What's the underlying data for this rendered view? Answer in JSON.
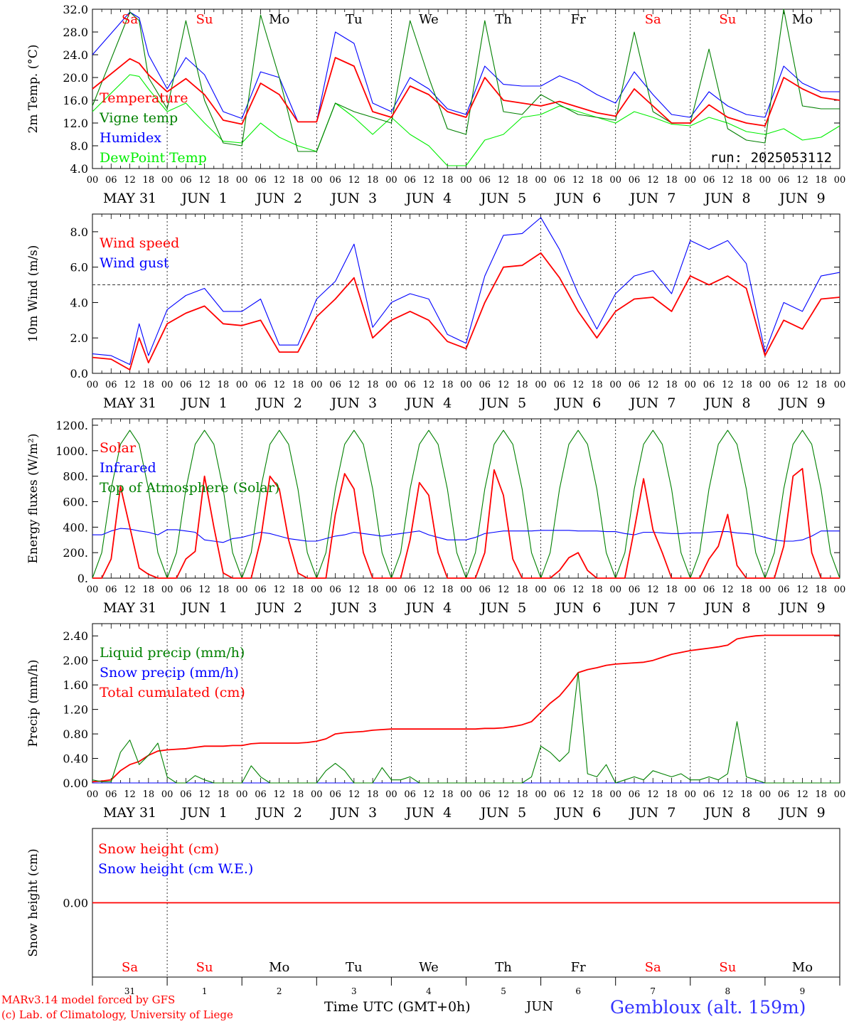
{
  "meteogram": {
    "run_label": "run: 2025053112",
    "x_axis_title": "Time UTC (GMT+0h)",
    "month_label": "JUN",
    "credit_line1": "MARv3.14 model forced by GFS",
    "credit_line2": "(c) Lab. of Climatology, University of Liege",
    "location": "Gembloux (alt. 159m)",
    "hour_ticks": [
      "00",
      "06",
      "12",
      "18"
    ],
    "date_labels": [
      "MAY 31",
      "JUN  1",
      "JUN  2",
      "JUN  3",
      "JUN  4",
      "JUN  5",
      "JUN  6",
      "JUN  7",
      "JUN  8",
      "JUN  9"
    ],
    "day_names": [
      "Sa",
      "Su",
      "Mo",
      "Tu",
      "We",
      "Th",
      "Fr",
      "Sa",
      "Su",
      "Mo"
    ],
    "day_numbers": [
      "31",
      "1",
      "2",
      "3",
      "4",
      "5",
      "6",
      "7",
      "8",
      "9"
    ],
    "colors": {
      "red": "#ff0000",
      "blue": "#0000ff",
      "green": "#008000",
      "lightgreen": "#00ee00",
      "location": "#3333ff",
      "weekend": "#ff0000",
      "weekday": "#000000"
    }
  },
  "chart_data": [
    {
      "type": "line",
      "ylabel": "2m Temp. (°C)",
      "ylim": [
        4.0,
        32.0
      ],
      "yticks": [
        "4.0",
        "8.0",
        "12.0",
        "16.0",
        "20.0",
        "24.0",
        "28.0",
        "32.0"
      ],
      "x_unit": "hours since 31 May 00 UTC",
      "x": [
        0,
        12,
        15,
        18,
        24,
        30,
        36,
        42,
        48,
        54,
        60,
        66,
        72,
        78,
        84,
        90,
        96,
        102,
        108,
        114,
        120,
        126,
        132,
        138,
        144,
        150,
        156,
        162,
        168,
        174,
        180,
        186,
        192,
        198,
        204,
        210,
        216,
        222,
        228,
        234,
        240
      ],
      "series": [
        {
          "name": "Temperature",
          "color": "#ff0000",
          "values": [
            18.0,
            23.3,
            22.5,
            20.5,
            17.5,
            19.8,
            17.0,
            12.5,
            11.8,
            19.0,
            17.0,
            12.2,
            12.2,
            23.5,
            22.0,
            14.0,
            13.0,
            18.5,
            17.0,
            14.0,
            13.0,
            20.0,
            16.0,
            15.5,
            15.0,
            15.8,
            14.8,
            13.8,
            13.2,
            18.0,
            15.0,
            12.0,
            12.0,
            15.2,
            13.0,
            12.0,
            11.5,
            20.0,
            18.0,
            16.5,
            16.0
          ]
        },
        {
          "name": "Vigne temp",
          "color": "#008000",
          "values": [
            15.0,
            31.5,
            30.0,
            20.0,
            14.5,
            30.0,
            16.0,
            8.5,
            8.0,
            31.0,
            20.0,
            7.0,
            7.0,
            15.5,
            14.0,
            13.0,
            12.0,
            30.0,
            20.0,
            11.0,
            10.0,
            30.0,
            14.0,
            13.5,
            17.0,
            15.2,
            13.5,
            13.0,
            12.5,
            28.0,
            14.0,
            12.0,
            12.0,
            25.0,
            11.0,
            9.0,
            8.5,
            32.0,
            15.0,
            14.5,
            14.5
          ]
        },
        {
          "name": "Humidex",
          "color": "#0000ff",
          "values": [
            24.0,
            31.5,
            30.5,
            24.0,
            18.0,
            23.5,
            20.5,
            14.0,
            12.8,
            21.0,
            20.0,
            12.2,
            12.2,
            28.0,
            26.0,
            15.5,
            14.0,
            20.0,
            18.0,
            14.5,
            13.5,
            22.0,
            18.8,
            18.5,
            18.5,
            20.3,
            19.0,
            17.0,
            15.5,
            21.0,
            17.0,
            13.5,
            13.0,
            17.5,
            15.0,
            13.5,
            13.0,
            22.0,
            19.0,
            17.5,
            17.5
          ]
        },
        {
          "name": "DewPoint Temp",
          "color": "#00ee00",
          "values": [
            14.0,
            20.5,
            20.2,
            18.0,
            14.0,
            15.5,
            12.0,
            8.8,
            8.5,
            12.0,
            9.5,
            8.0,
            7.0,
            15.5,
            13.0,
            10.0,
            13.0,
            10.0,
            8.0,
            4.5,
            4.5,
            9.0,
            10.0,
            13.0,
            13.5,
            15.0,
            14.0,
            13.0,
            12.0,
            14.0,
            13.0,
            11.8,
            11.5,
            13.0,
            12.0,
            10.5,
            10.0,
            11.0,
            9.0,
            9.5,
            11.5
          ]
        }
      ]
    },
    {
      "type": "line",
      "ylabel": "10m Wind (m/s)",
      "ylim": [
        0.0,
        9.0
      ],
      "yticks": [
        "0.0",
        "2.0",
        "4.0",
        "6.0",
        "8.0"
      ],
      "reference_line": 5.0,
      "x": [
        0,
        6,
        12,
        15,
        18,
        24,
        30,
        36,
        42,
        48,
        54,
        60,
        66,
        72,
        78,
        84,
        90,
        96,
        102,
        108,
        114,
        120,
        126,
        132,
        138,
        144,
        150,
        156,
        162,
        168,
        174,
        180,
        186,
        192,
        198,
        204,
        210,
        216,
        222,
        228,
        234,
        240
      ],
      "series": [
        {
          "name": "Wind speed",
          "color": "#ff0000",
          "values": [
            0.9,
            0.8,
            0.2,
            2.0,
            0.6,
            2.8,
            3.4,
            3.8,
            2.8,
            2.7,
            3.0,
            1.2,
            1.2,
            3.2,
            4.2,
            5.4,
            2.0,
            3.0,
            3.5,
            3.0,
            1.8,
            1.4,
            4.0,
            6.0,
            6.1,
            6.8,
            5.4,
            3.5,
            2.0,
            3.5,
            4.2,
            4.3,
            3.5,
            5.5,
            5.0,
            5.5,
            4.8,
            1.0,
            3.0,
            2.5,
            4.2,
            4.3
          ]
        },
        {
          "name": "Wind gust",
          "color": "#0000ff",
          "values": [
            1.1,
            1.0,
            0.5,
            2.8,
            1.0,
            3.6,
            4.4,
            4.8,
            3.5,
            3.5,
            4.2,
            1.6,
            1.6,
            4.2,
            5.2,
            7.3,
            2.6,
            4.0,
            4.5,
            4.2,
            2.2,
            1.7,
            5.5,
            7.8,
            7.9,
            8.8,
            7.0,
            4.5,
            2.5,
            4.5,
            5.5,
            5.8,
            4.5,
            7.5,
            7.0,
            7.5,
            6.2,
            1.2,
            4.0,
            3.5,
            5.5,
            5.7
          ]
        }
      ]
    },
    {
      "type": "line",
      "ylabel": "Energy fluxes (W/m²)",
      "ylim": [
        0,
        1250
      ],
      "yticks": [
        "0.",
        "200.",
        "400.",
        "600.",
        "800.",
        "1000.",
        "1200."
      ],
      "x": [
        0,
        3,
        6,
        9,
        12,
        15,
        18,
        21,
        24,
        27,
        30,
        33,
        36,
        39,
        42,
        45,
        48,
        51,
        54,
        57,
        60,
        63,
        66,
        69,
        72,
        75,
        78,
        81,
        84,
        87,
        90,
        93,
        96,
        99,
        102,
        105,
        108,
        111,
        114,
        117,
        120,
        123,
        126,
        129,
        132,
        135,
        138,
        141,
        144,
        147,
        150,
        153,
        156,
        159,
        162,
        165,
        168,
        171,
        174,
        177,
        180,
        183,
        186,
        189,
        192,
        195,
        198,
        201,
        204,
        207,
        210,
        213,
        216,
        219,
        222,
        225,
        228,
        231,
        234,
        237,
        240
      ],
      "series": [
        {
          "name": "Solar",
          "color": "#ff0000",
          "values": [
            0,
            0,
            150,
            720,
            400,
            80,
            30,
            0,
            0,
            0,
            150,
            210,
            800,
            400,
            40,
            0,
            0,
            0,
            300,
            800,
            700,
            300,
            40,
            0,
            0,
            0,
            500,
            820,
            700,
            200,
            0,
            0,
            0,
            0,
            300,
            750,
            650,
            200,
            0,
            0,
            0,
            0,
            200,
            850,
            650,
            150,
            0,
            0,
            0,
            0,
            60,
            160,
            200,
            60,
            0,
            0,
            0,
            0,
            380,
            780,
            380,
            200,
            0,
            0,
            0,
            0,
            150,
            250,
            500,
            100,
            0,
            0,
            0,
            0,
            250,
            800,
            860,
            200,
            0,
            0,
            0
          ]
        },
        {
          "name": "Infrared",
          "color": "#0000ff",
          "values": [
            340,
            340,
            370,
            390,
            385,
            370,
            360,
            340,
            380,
            380,
            370,
            360,
            300,
            290,
            280,
            310,
            320,
            340,
            360,
            350,
            330,
            310,
            300,
            290,
            290,
            310,
            330,
            340,
            360,
            350,
            340,
            330,
            340,
            350,
            360,
            370,
            340,
            320,
            300,
            300,
            300,
            320,
            350,
            360,
            370,
            370,
            370,
            370,
            375,
            375,
            375,
            375,
            370,
            370,
            370,
            365,
            365,
            350,
            340,
            360,
            360,
            355,
            350,
            350,
            355,
            355,
            360,
            365,
            365,
            355,
            350,
            340,
            320,
            300,
            290,
            290,
            300,
            330,
            370,
            370,
            370
          ]
        },
        {
          "name": "Top of Atmosphere (Solar)",
          "color": "#008000",
          "values": [
            0,
            200,
            700,
            1050,
            1160,
            1050,
            700,
            200,
            0,
            200,
            700,
            1050,
            1160,
            1050,
            700,
            200,
            0,
            200,
            700,
            1050,
            1160,
            1050,
            700,
            200,
            0,
            200,
            700,
            1050,
            1160,
            1050,
            700,
            200,
            0,
            200,
            700,
            1050,
            1160,
            1050,
            700,
            200,
            0,
            200,
            700,
            1050,
            1160,
            1050,
            700,
            200,
            0,
            200,
            700,
            1050,
            1160,
            1050,
            700,
            200,
            0,
            200,
            700,
            1050,
            1160,
            1050,
            700,
            200,
            0,
            200,
            700,
            1050,
            1160,
            1050,
            700,
            200,
            0,
            200,
            700,
            1050,
            1160,
            1050,
            700,
            200,
            0
          ]
        }
      ]
    },
    {
      "type": "line",
      "ylabel": "Precip (mm/h)",
      "ylim": [
        0.0,
        2.6
      ],
      "yticks": [
        "0.00",
        "0.40",
        "0.80",
        "1.20",
        "1.60",
        "2.00",
        "2.40"
      ],
      "x": [
        0,
        3,
        6,
        9,
        12,
        15,
        18,
        21,
        24,
        27,
        30,
        33,
        36,
        39,
        42,
        45,
        48,
        51,
        54,
        57,
        60,
        63,
        66,
        69,
        72,
        75,
        78,
        81,
        84,
        87,
        90,
        93,
        96,
        99,
        102,
        105,
        108,
        111,
        114,
        117,
        120,
        123,
        126,
        129,
        132,
        135,
        138,
        141,
        144,
        147,
        150,
        153,
        156,
        159,
        162,
        165,
        168,
        171,
        174,
        177,
        180,
        183,
        186,
        189,
        192,
        195,
        198,
        201,
        204,
        207,
        210,
        213,
        216,
        219,
        222,
        225,
        228,
        231,
        234,
        237,
        240
      ],
      "series": [
        {
          "name": "Liquid precip (mm/h)",
          "color": "#008000",
          "values": [
            0.05,
            0.02,
            0.02,
            0.5,
            0.7,
            0.3,
            0.45,
            0.65,
            0.1,
            0,
            0,
            0.12,
            0.05,
            0,
            0,
            0,
            0,
            0.28,
            0.1,
            0,
            0,
            0,
            0,
            0,
            0,
            0.2,
            0.32,
            0.2,
            0,
            0,
            0,
            0.25,
            0.05,
            0.05,
            0.1,
            0,
            0,
            0,
            0,
            0,
            0,
            0,
            0,
            0,
            0,
            0,
            0,
            0.1,
            0.6,
            0.5,
            0.35,
            0.5,
            1.8,
            0.15,
            0.1,
            0.3,
            0,
            0.05,
            0.1,
            0.05,
            0.2,
            0.15,
            0.1,
            0.15,
            0.05,
            0.05,
            0.1,
            0.05,
            0.15,
            1.0,
            0.1,
            0.05,
            0,
            0,
            0,
            0,
            0,
            0,
            0,
            0,
            0
          ]
        },
        {
          "name": "Snow precip (mm/h)",
          "color": "#0000ff",
          "values": [
            0,
            0,
            0,
            0,
            0,
            0,
            0,
            0,
            0,
            0,
            0,
            0,
            0,
            0,
            0,
            0,
            0,
            0,
            0,
            0,
            0,
            0,
            0,
            0,
            0,
            0,
            0,
            0,
            0,
            0,
            0,
            0,
            0,
            0,
            0,
            0,
            0,
            0,
            0,
            0,
            0,
            0,
            0,
            0,
            0,
            0,
            0,
            0,
            0,
            0,
            0,
            0,
            0,
            0,
            0,
            0,
            0,
            0,
            0,
            0,
            0,
            0,
            0,
            0,
            0,
            0,
            0,
            0,
            0,
            0,
            0,
            0,
            0,
            0,
            0,
            0,
            0,
            0,
            0,
            0,
            0
          ]
        },
        {
          "name": "Total cumulated (cm)",
          "color": "#ff0000",
          "values": [
            0.02,
            0.03,
            0.05,
            0.2,
            0.3,
            0.35,
            0.45,
            0.52,
            0.54,
            0.55,
            0.56,
            0.58,
            0.6,
            0.6,
            0.6,
            0.61,
            0.61,
            0.64,
            0.65,
            0.65,
            0.65,
            0.65,
            0.65,
            0.66,
            0.68,
            0.72,
            0.8,
            0.82,
            0.83,
            0.84,
            0.86,
            0.87,
            0.88,
            0.88,
            0.88,
            0.88,
            0.88,
            0.88,
            0.88,
            0.88,
            0.88,
            0.88,
            0.89,
            0.89,
            0.9,
            0.92,
            0.95,
            1.0,
            1.15,
            1.3,
            1.42,
            1.6,
            1.8,
            1.85,
            1.88,
            1.92,
            1.94,
            1.95,
            1.96,
            1.97,
            2.0,
            2.05,
            2.1,
            2.13,
            2.16,
            2.18,
            2.2,
            2.22,
            2.25,
            2.35,
            2.38,
            2.4,
            2.41,
            2.41,
            2.41,
            2.41,
            2.41,
            2.41,
            2.41,
            2.41,
            2.41
          ]
        }
      ]
    },
    {
      "type": "line",
      "ylabel": "Snow height (cm)",
      "ylim": [
        -1.0,
        1.0
      ],
      "yticks": [
        "0.00"
      ],
      "x": [
        0,
        240
      ],
      "series": [
        {
          "name": "Snow height (cm)",
          "color": "#ff0000",
          "values": [
            0,
            0
          ]
        },
        {
          "name": "Snow height (cm W.E.)",
          "color": "#0000ff",
          "values": [
            0,
            0
          ]
        }
      ]
    }
  ]
}
